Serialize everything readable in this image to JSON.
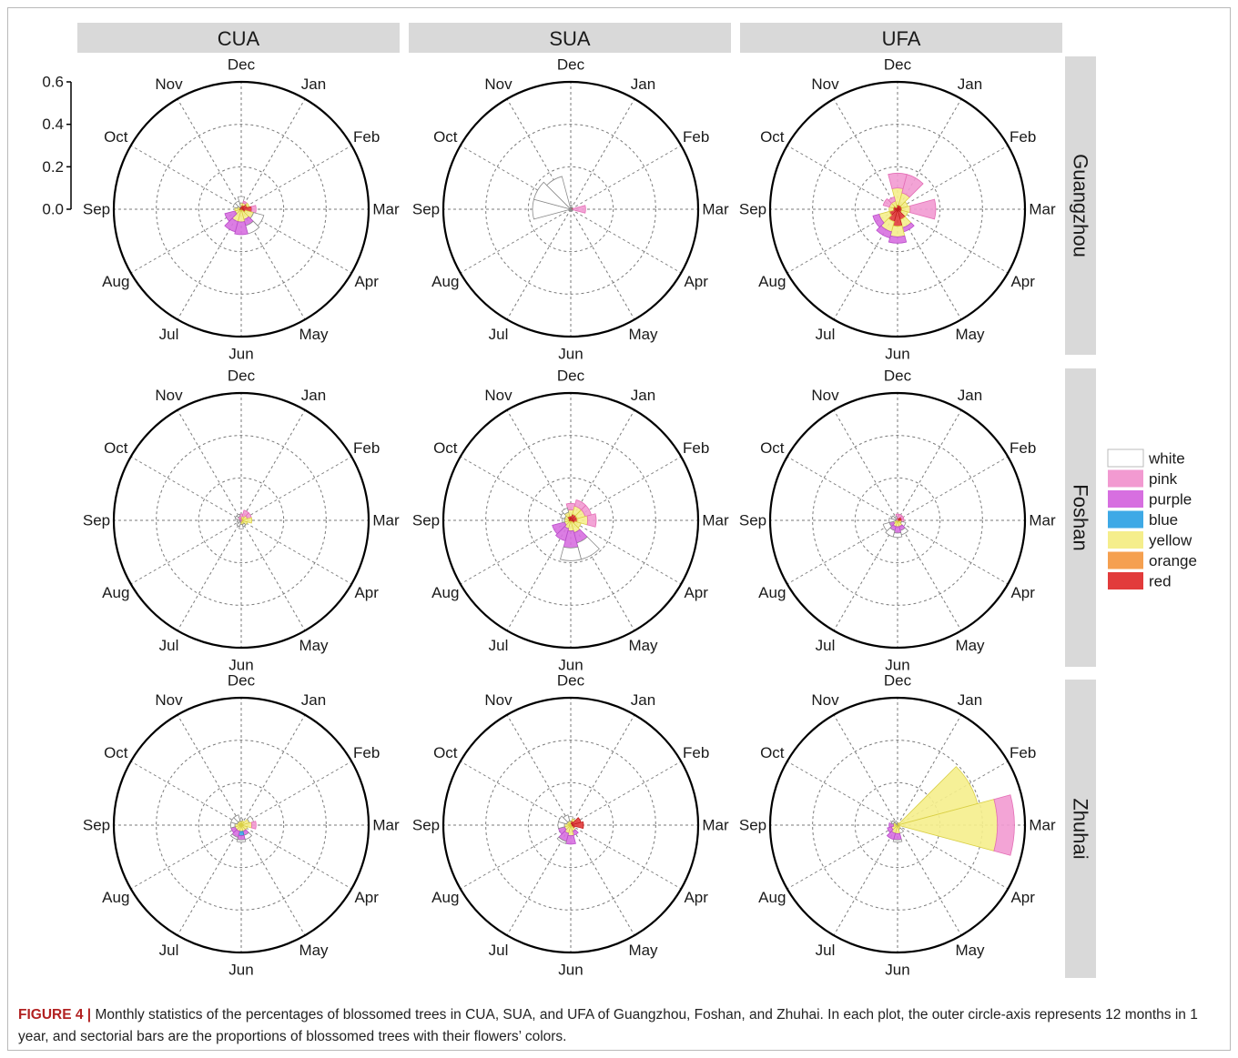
{
  "chart_data": {
    "type": "polar-stacked-bar",
    "columns": [
      "CUA",
      "SUA",
      "UFA"
    ],
    "rows": [
      "Guangzhou",
      "Foshan",
      "Zhuhai"
    ],
    "months": [
      "Dec",
      "Jan",
      "Feb",
      "Mar",
      "Apr",
      "May",
      "Jun",
      "Jul",
      "Aug",
      "Sep",
      "Oct",
      "Nov"
    ],
    "rticks": [
      "0.0",
      "0.2",
      "0.4",
      "0.6"
    ],
    "rlim": [
      0,
      0.6
    ],
    "legend": {
      "position": "right",
      "items": [
        {
          "name": "white",
          "color": "#ffffff"
        },
        {
          "name": "pink",
          "color": "#f29ad1"
        },
        {
          "name": "purple",
          "color": "#d76fe0"
        },
        {
          "name": "blue",
          "color": "#3ea9e6"
        },
        {
          "name": "yellow",
          "color": "#f5ee8c"
        },
        {
          "name": "orange",
          "color": "#f5a050"
        },
        {
          "name": "red",
          "color": "#e23b3b"
        }
      ]
    },
    "panels": [
      {
        "row": "Guangzhou",
        "col": "CUA",
        "stacks": {
          "Dec": {
            "red": 0.01,
            "yellow": 0.02,
            "white": 0.03
          },
          "Jan": {
            "red": 0.02,
            "yellow": 0.01,
            "pink": 0.01
          },
          "Feb": {
            "red": 0.03,
            "yellow": 0.01
          },
          "Mar": {
            "red": 0.05,
            "pink": 0.02
          },
          "Apr": {
            "red": 0.02,
            "yellow": 0.04,
            "white": 0.05
          },
          "May": {
            "yellow": 0.05,
            "purple": 0.03,
            "white": 0.04
          },
          "Jun": {
            "yellow": 0.06,
            "purple": 0.06
          },
          "Jul": {
            "yellow": 0.06,
            "purple": 0.05
          },
          "Aug": {
            "yellow": 0.03,
            "purple": 0.05
          },
          "Sep": {
            "red": 0.01,
            "yellow": 0.02
          },
          "Oct": {
            "yellow": 0.02,
            "white": 0.02
          },
          "Nov": {
            "red": 0.01,
            "white": 0.03
          }
        }
      },
      {
        "row": "Guangzhou",
        "col": "SUA",
        "stacks": {
          "Dec": {
            "white": 0.02
          },
          "Jan": {
            "white": 0.01
          },
          "Feb": {
            "white": 0.01
          },
          "Mar": {
            "red": 0.01,
            "pink": 0.06
          },
          "Apr": {
            "white": 0.01
          },
          "May": {
            "white": 0.01
          },
          "Jun": {
            "white": 0.01
          },
          "Jul": {
            "white": 0.01
          },
          "Aug": {
            "white": 0.01
          },
          "Sep": {
            "white": 0.18
          },
          "Oct": {
            "white": 0.18
          },
          "Nov": {
            "white": 0.16
          }
        }
      },
      {
        "row": "Guangzhou",
        "col": "UFA",
        "stacks": {
          "Dec": {
            "red": 0.02,
            "yellow": 0.08,
            "pink": 0.07
          },
          "Jan": {
            "red": 0.02,
            "yellow": 0.06,
            "pink": 0.09
          },
          "Feb": {
            "red": 0.02,
            "yellow": 0.03
          },
          "Mar": {
            "red": 0.02,
            "yellow": 0.04,
            "pink": 0.12
          },
          "Apr": {
            "red": 0.02,
            "yellow": 0.03
          },
          "May": {
            "red": 0.05,
            "yellow": 0.04,
            "purple": 0.02
          },
          "Jun": {
            "red": 0.08,
            "yellow": 0.05,
            "purple": 0.03
          },
          "Jul": {
            "red": 0.06,
            "yellow": 0.05,
            "purple": 0.03
          },
          "Aug": {
            "red": 0.04,
            "yellow": 0.05,
            "purple": 0.03
          },
          "Sep": {
            "red": 0.02,
            "yellow": 0.02
          },
          "Oct": {
            "red": 0.02,
            "yellow": 0.02,
            "pink": 0.03
          },
          "Nov": {
            "red": 0.01,
            "yellow": 0.03,
            "pink": 0.02
          }
        }
      },
      {
        "row": "Foshan",
        "col": "CUA",
        "stacks": {
          "Dec": {
            "yellow": 0.01,
            "pink": 0.02
          },
          "Jan": {
            "yellow": 0.02,
            "pink": 0.03
          },
          "Feb": {
            "yellow": 0.03,
            "pink": 0.02
          },
          "Mar": {
            "yellow": 0.05
          },
          "Apr": {
            "yellow": 0.03
          },
          "May": {
            "yellow": 0.02,
            "white": 0.01
          },
          "Jun": {
            "yellow": 0.02,
            "white": 0.02
          },
          "Jul": {
            "white": 0.02,
            "pink": 0.01
          },
          "Aug": {
            "white": 0.02
          },
          "Sep": {
            "white": 0.02
          },
          "Oct": {
            "white": 0.02,
            "pink": 0.01
          },
          "Nov": {
            "pink": 0.02,
            "white": 0.01
          }
        }
      },
      {
        "row": "Foshan",
        "col": "SUA",
        "stacks": {
          "Dec": {
            "red": 0.02,
            "yellow": 0.03,
            "pink": 0.03
          },
          "Jan": {
            "red": 0.03,
            "yellow": 0.04,
            "pink": 0.03
          },
          "Feb": {
            "red": 0.03,
            "yellow": 0.04,
            "pink": 0.03
          },
          "Mar": {
            "red": 0.03,
            "yellow": 0.05,
            "pink": 0.04
          },
          "Apr": {
            "red": 0.02,
            "yellow": 0.03
          },
          "May": {
            "yellow": 0.06,
            "purple": 0.05,
            "white": 0.08
          },
          "Jun": {
            "yellow": 0.05,
            "purple": 0.08,
            "white": 0.06
          },
          "Jul": {
            "yellow": 0.04,
            "purple": 0.06
          },
          "Aug": {
            "yellow": 0.03,
            "purple": 0.06
          },
          "Sep": {
            "red": 0.01,
            "yellow": 0.02,
            "white": 0.01
          },
          "Oct": {
            "red": 0.01,
            "yellow": 0.02,
            "white": 0.02
          },
          "Nov": {
            "red": 0.02,
            "yellow": 0.02,
            "white": 0.02
          }
        }
      },
      {
        "row": "Foshan",
        "col": "UFA",
        "stacks": {
          "Dec": {
            "red": 0.01,
            "pink": 0.02
          },
          "Jan": {
            "red": 0.01,
            "pink": 0.02
          },
          "Feb": {
            "red": 0.02,
            "pink": 0.01
          },
          "Mar": {
            "red": 0.02,
            "pink": 0.01
          },
          "Apr": {
            "red": 0.01,
            "yellow": 0.01,
            "white": 0.02
          },
          "May": {
            "yellow": 0.03,
            "purple": 0.02,
            "white": 0.02
          },
          "Jun": {
            "yellow": 0.03,
            "purple": 0.03,
            "white": 0.02
          },
          "Jul": {
            "yellow": 0.03,
            "purple": 0.02,
            "white": 0.03
          },
          "Aug": {
            "yellow": 0.02,
            "purple": 0.02,
            "white": 0.03
          },
          "Sep": {
            "yellow": 0.01,
            "white": 0.03
          },
          "Oct": {
            "white": 0.03
          },
          "Nov": {
            "pink": 0.01,
            "white": 0.01
          }
        }
      },
      {
        "row": "Zhuhai",
        "col": "CUA",
        "stacks": {
          "Dec": {
            "yellow": 0.02,
            "white": 0.01
          },
          "Jan": {
            "yellow": 0.02
          },
          "Feb": {
            "yellow": 0.04,
            "white": 0.02
          },
          "Mar": {
            "yellow": 0.05,
            "pink": 0.02
          },
          "Apr": {
            "yellow": 0.03
          },
          "May": {
            "yellow": 0.03,
            "purple": 0.02,
            "white": 0.02
          },
          "Jun": {
            "yellow": 0.03,
            "blue": 0.02,
            "purple": 0.02,
            "white": 0.01
          },
          "Jul": {
            "yellow": 0.03,
            "purple": 0.03,
            "white": 0.01
          },
          "Aug": {
            "yellow": 0.03,
            "purple": 0.02
          },
          "Sep": {
            "yellow": 0.03,
            "white": 0.02
          },
          "Oct": {
            "yellow": 0.02,
            "white": 0.03
          },
          "Nov": {
            "yellow": 0.02,
            "white": 0.03
          }
        }
      },
      {
        "row": "Zhuhai",
        "col": "SUA",
        "stacks": {
          "Dec": {
            "yellow": 0.02,
            "white": 0.02
          },
          "Jan": {
            "yellow": 0.01,
            "red": 0.02
          },
          "Feb": {
            "red": 0.05
          },
          "Mar": {
            "red": 0.06
          },
          "Apr": {
            "red": 0.02
          },
          "May": {
            "yellow": 0.03,
            "purple": 0.02
          },
          "Jun": {
            "yellow": 0.05,
            "purple": 0.04
          },
          "Jul": {
            "yellow": 0.04,
            "purple": 0.04,
            "white": 0.01
          },
          "Aug": {
            "yellow": 0.03,
            "purple": 0.03
          },
          "Sep": {
            "yellow": 0.03,
            "white": 0.03
          },
          "Oct": {
            "yellow": 0.02,
            "white": 0.04
          },
          "Nov": {
            "yellow": 0.02,
            "white": 0.03
          }
        }
      },
      {
        "row": "Zhuhai",
        "col": "UFA",
        "stacks": {
          "Dec": {
            "yellow": 0.01
          },
          "Jan": {
            "yellow": 0.01
          },
          "Feb": {
            "yellow": 0.39
          },
          "Mar": {
            "yellow": 0.47,
            "pink": 0.08
          },
          "Apr": {
            "yellow": 0.01
          },
          "May": {
            "yellow": 0.02,
            "white": 0.02
          },
          "Jun": {
            "yellow": 0.04,
            "purple": 0.03,
            "white": 0.01
          },
          "Jul": {
            "yellow": 0.04,
            "purple": 0.03
          },
          "Aug": {
            "yellow": 0.03,
            "purple": 0.02
          },
          "Sep": {
            "yellow": 0.02,
            "purple": 0.02
          },
          "Oct": {
            "yellow": 0.02,
            "white": 0.01
          },
          "Nov": {
            "white": 0.02
          }
        }
      }
    ]
  },
  "caption": {
    "lead": "FIGURE 4 |",
    "text": " Monthly statistics of the percentages of blossomed trees in CUA, SUA, and UFA of Guangzhou, Foshan, and Zhuhai. In each plot, the outer circle-axis represents 12 months in 1 year, and sectorial bars are the proportions of blossomed trees with their flowers’ colors."
  }
}
